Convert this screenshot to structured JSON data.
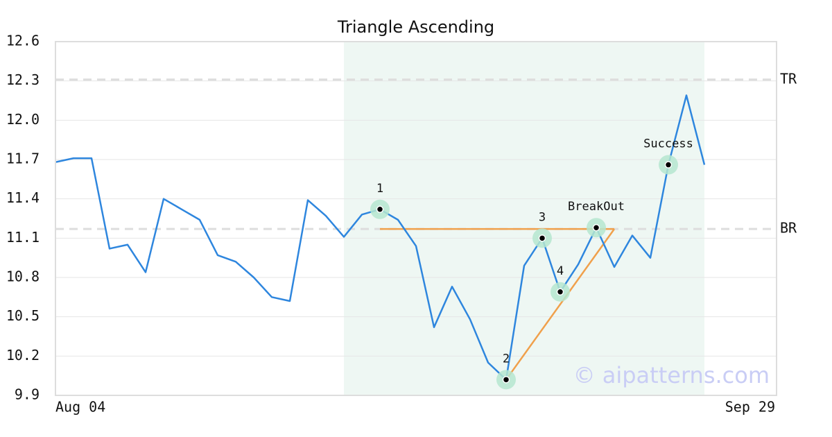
{
  "chart_data": {
    "type": "line",
    "title": "Triangle Ascending",
    "categories": [
      "Aug 04",
      null,
      null,
      null,
      null,
      null,
      null,
      null,
      null,
      null,
      null,
      null,
      null,
      null,
      null,
      null,
      null,
      null,
      null,
      null,
      null,
      null,
      null,
      null,
      null,
      null,
      null,
      null,
      null,
      null,
      null,
      null,
      null,
      null,
      null,
      null,
      null,
      null,
      null,
      null,
      "Sep 29"
    ],
    "series": [
      {
        "color": "#2e86de",
        "values": [
          11.68,
          11.71,
          11.71,
          11.02,
          11.05,
          10.84,
          11.4,
          11.32,
          11.24,
          10.97,
          10.92,
          10.8,
          10.65,
          10.62,
          11.39,
          11.27,
          11.11,
          11.28,
          11.32,
          11.24,
          11.04,
          10.42,
          10.73,
          10.48,
          10.15,
          10.02,
          10.89,
          11.1,
          10.69,
          10.9,
          11.18,
          10.88,
          11.12,
          10.95,
          11.66,
          12.19,
          11.66,
          null,
          null,
          null,
          null
        ]
      }
    ],
    "ylim": [
      9.9,
      12.6
    ],
    "yticks": [
      9.9,
      10.2,
      10.5,
      10.8,
      11.1,
      11.4,
      11.7,
      {
        "value": 12,
        "label": "12.0"
      },
      12.3,
      12.6
    ],
    "grid": true,
    "reference_lines": [
      {
        "label": "TR",
        "value": 12.31
      },
      {
        "label": "BR",
        "value": 11.17
      }
    ],
    "highlight_range": [
      16,
      36
    ],
    "annotations": [
      {
        "label": "1",
        "index": 18
      },
      {
        "label": "2",
        "index": 25
      },
      {
        "label": "3",
        "index": 27
      },
      {
        "label": "4",
        "index": 28
      },
      {
        "label": "BreakOut",
        "index": 30
      },
      {
        "label": "Success",
        "index": 34
      }
    ],
    "pattern_color": "#f0a04b",
    "pattern_lines": [
      {
        "x": [
          18,
          31
        ],
        "y": [
          11.17,
          11.17
        ]
      },
      {
        "x": [
          25,
          31
        ],
        "y": [
          10.02,
          11.17
        ]
      }
    ],
    "watermark": "© aipatterns.com"
  }
}
